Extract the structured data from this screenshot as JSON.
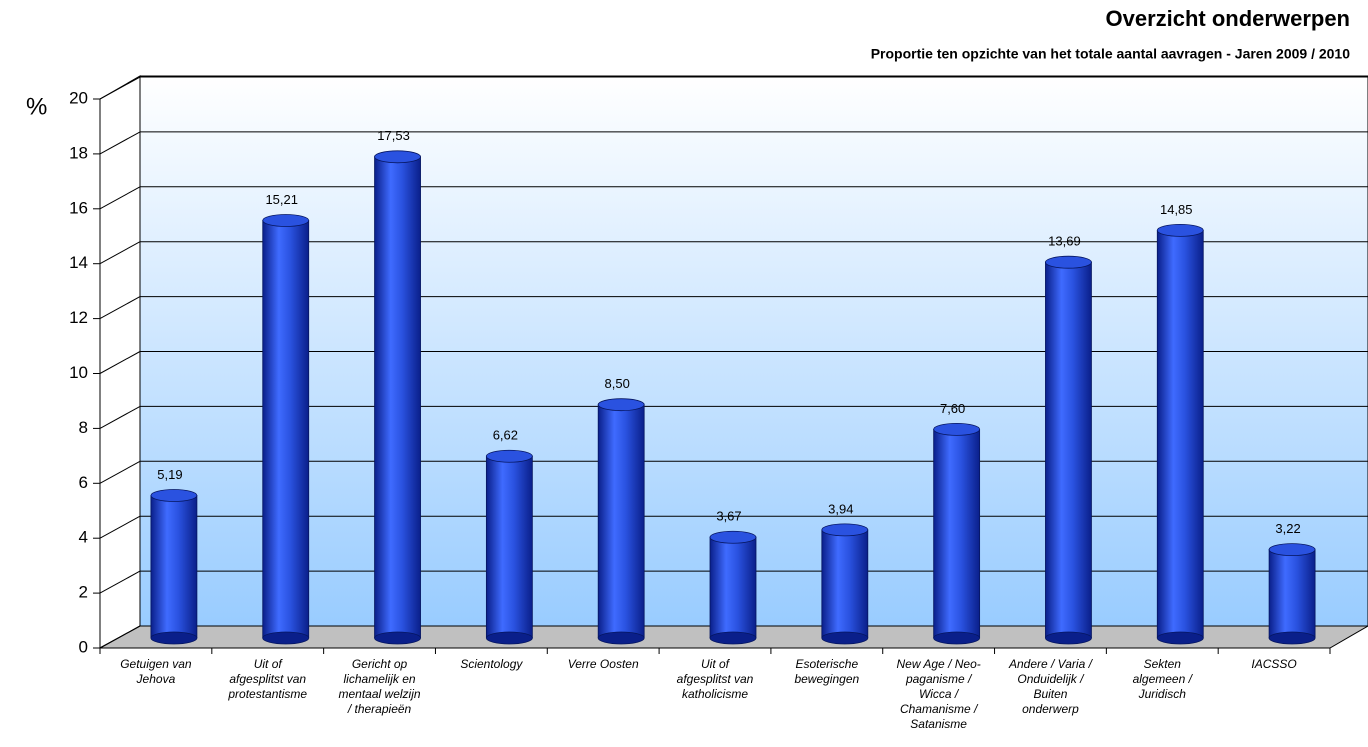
{
  "chart_data": {
    "type": "bar",
    "title": "Overzicht onderwerpen",
    "subtitle": "Proportie ten opzichte van het totale aantal aavragen - Jaren 2009 / 2010",
    "y_label": "%",
    "categories": [
      "Getuigen van\nJehova",
      "Uit of\nafgesplitst van\nprotestantisme",
      "Gericht op\nlichamelijk en\nmentaal welzijn\n/ therapieën",
      "Scientology",
      "Verre Oosten",
      "Uit of\nafgesplitst van\nkatholicisme",
      "Esoterische\nbewegingen",
      "New Age / Neo-\npaganisme /\nWicca /\nChamanisme /\nSatanisme",
      "Andere / Varia /\nOnduidelijk /\nBuiten\nonderwerp",
      "Sekten\nalgemeen /\nJuridisch",
      "IACSSO"
    ],
    "values": [
      5.19,
      15.21,
      17.53,
      6.62,
      8.5,
      3.67,
      3.94,
      7.6,
      13.69,
      14.85,
      3.22
    ],
    "value_labels": [
      "5,19",
      "15,21",
      "17,53",
      "6,62",
      "8,50",
      "3,67",
      "3,94",
      "7,60",
      "13,69",
      "14,85",
      "3,22"
    ],
    "color": "#2a52e0",
    "ylim": [
      0,
      20
    ],
    "yticks": [
      0,
      2,
      4,
      6,
      8,
      10,
      12,
      14,
      16,
      18,
      20
    ],
    "grid": true
  }
}
